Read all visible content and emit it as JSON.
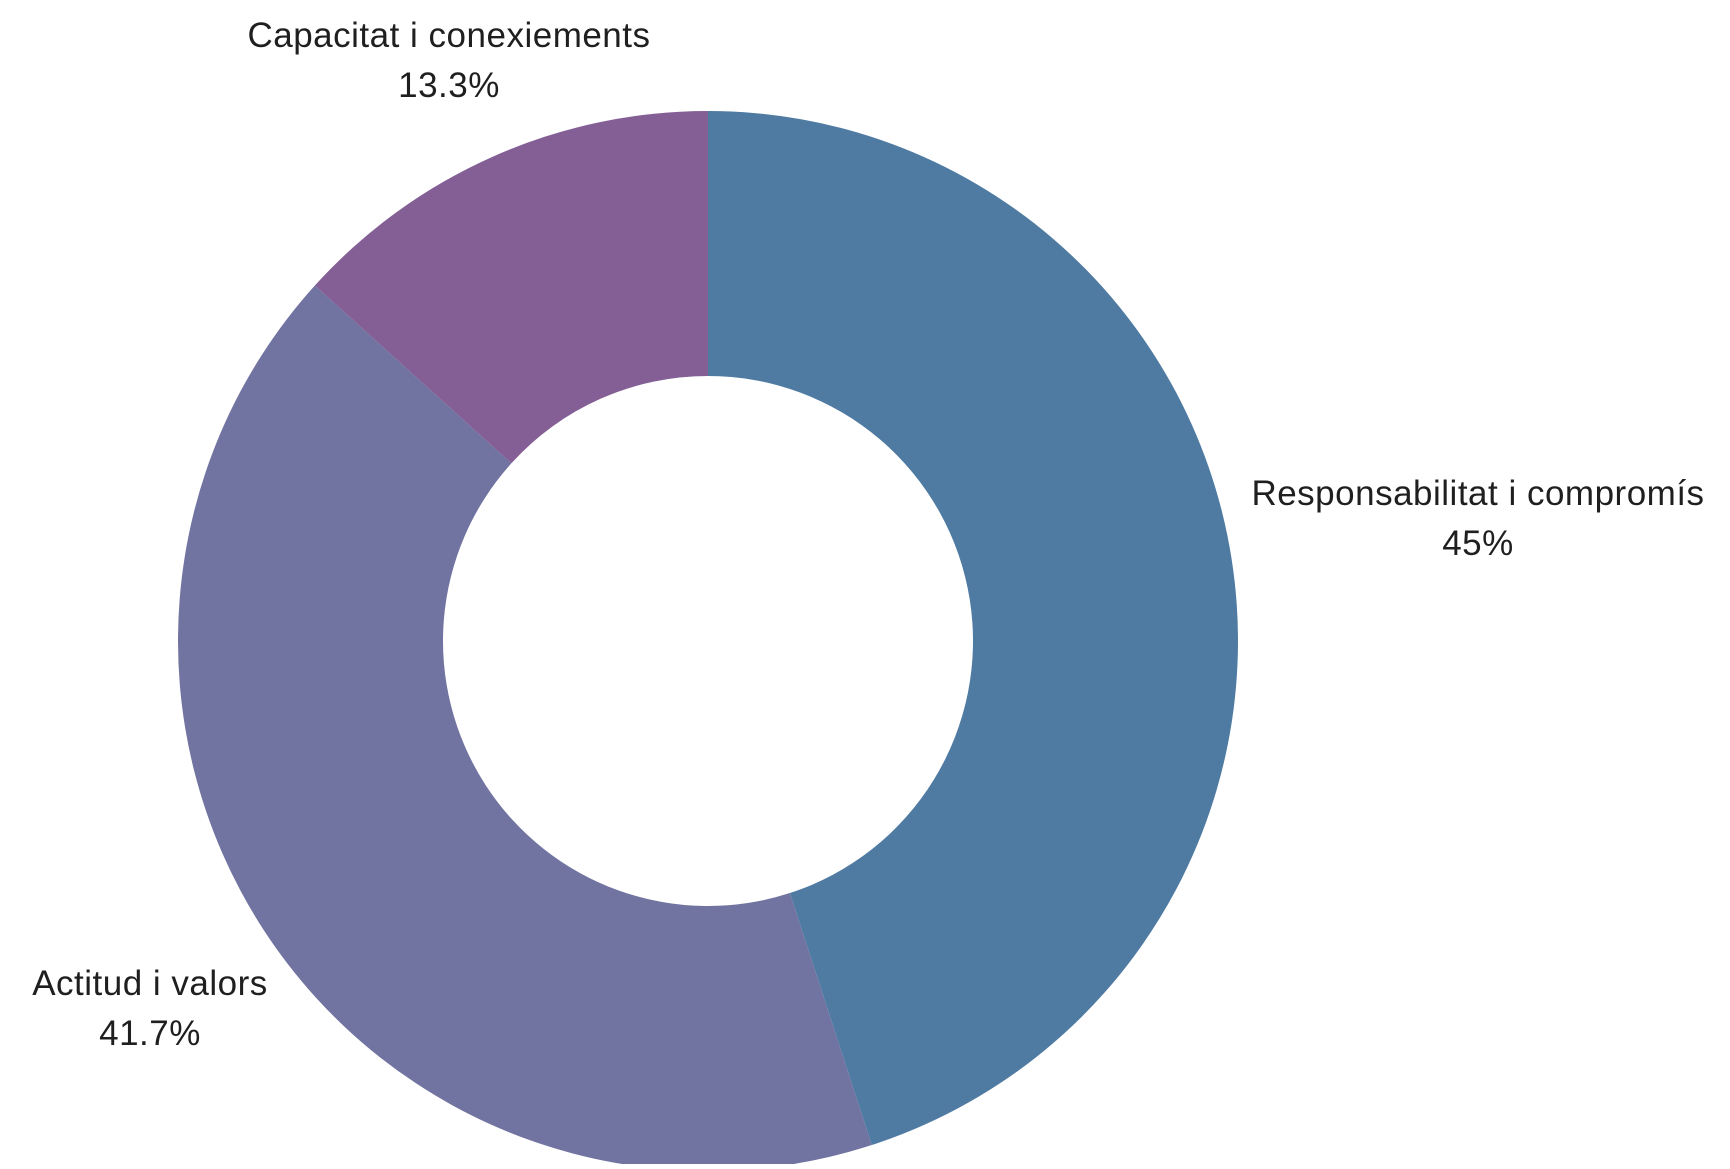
{
  "chart_data": {
    "type": "pie",
    "style": "donut",
    "start_angle": "12 o'clock",
    "direction": "clockwise",
    "slices": [
      {
        "label": "Responsabilitat i compromís",
        "value": 45,
        "value_label": "45%",
        "color": "#4f7ba3"
      },
      {
        "label": "Actitud i valors",
        "value": 41.7,
        "value_label": "41.7%",
        "color": "#7173a1"
      },
      {
        "label": "Capacitat i conexiements",
        "value": 13.3,
        "value_label": "13.3%",
        "color": "#835f96"
      }
    ]
  }
}
